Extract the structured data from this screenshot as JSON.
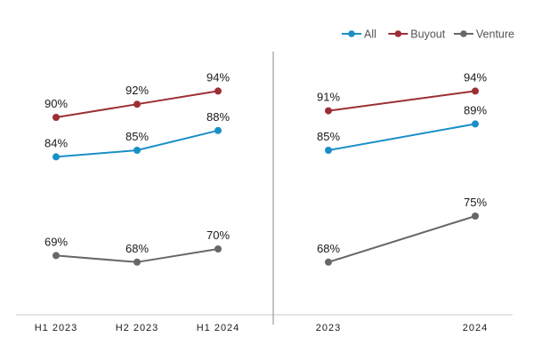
{
  "chart_data": [
    {
      "type": "line",
      "panel": "left",
      "categories": [
        "H1 2023",
        "H2 2023",
        "H1 2024"
      ],
      "series": [
        {
          "name": "All",
          "values": [
            84,
            85,
            88
          ],
          "labels": [
            "84%",
            "85%",
            "88%"
          ],
          "color": "#1a8fc6"
        },
        {
          "name": "Buyout",
          "values": [
            90,
            92,
            94
          ],
          "labels": [
            "90%",
            "92%",
            "94%"
          ],
          "color": "#9c2f35"
        },
        {
          "name": "Venture",
          "values": [
            69,
            68,
            70
          ],
          "labels": [
            "69%",
            "68%",
            "70%"
          ],
          "color": "#676767"
        }
      ],
      "title": "",
      "xlabel": "",
      "ylabel": "",
      "ylim": [
        60,
        100
      ],
      "grid": false
    },
    {
      "type": "line",
      "panel": "right",
      "categories": [
        "2023",
        "2024"
      ],
      "series": [
        {
          "name": "All",
          "values": [
            85,
            89
          ],
          "labels": [
            "85%",
            "89%"
          ],
          "color": "#1a8fc6"
        },
        {
          "name": "Buyout",
          "values": [
            91,
            94
          ],
          "labels": [
            "91%",
            "94%"
          ],
          "color": "#9c2f35"
        },
        {
          "name": "Venture",
          "values": [
            68,
            75
          ],
          "labels": [
            "68%",
            "75%"
          ],
          "color": "#676767"
        }
      ],
      "title": "",
      "xlabel": "",
      "ylabel": "",
      "ylim": [
        60,
        100
      ],
      "grid": false
    }
  ],
  "legend": {
    "position": "top-right",
    "items": [
      {
        "label": "All",
        "color": "#1a8fc6"
      },
      {
        "label": "Buyout",
        "color": "#9c2f35"
      },
      {
        "label": "Venture",
        "color": "#676767"
      }
    ]
  },
  "colors": {
    "axis": "#c8c8c8",
    "divider": "#8a8a8a"
  }
}
